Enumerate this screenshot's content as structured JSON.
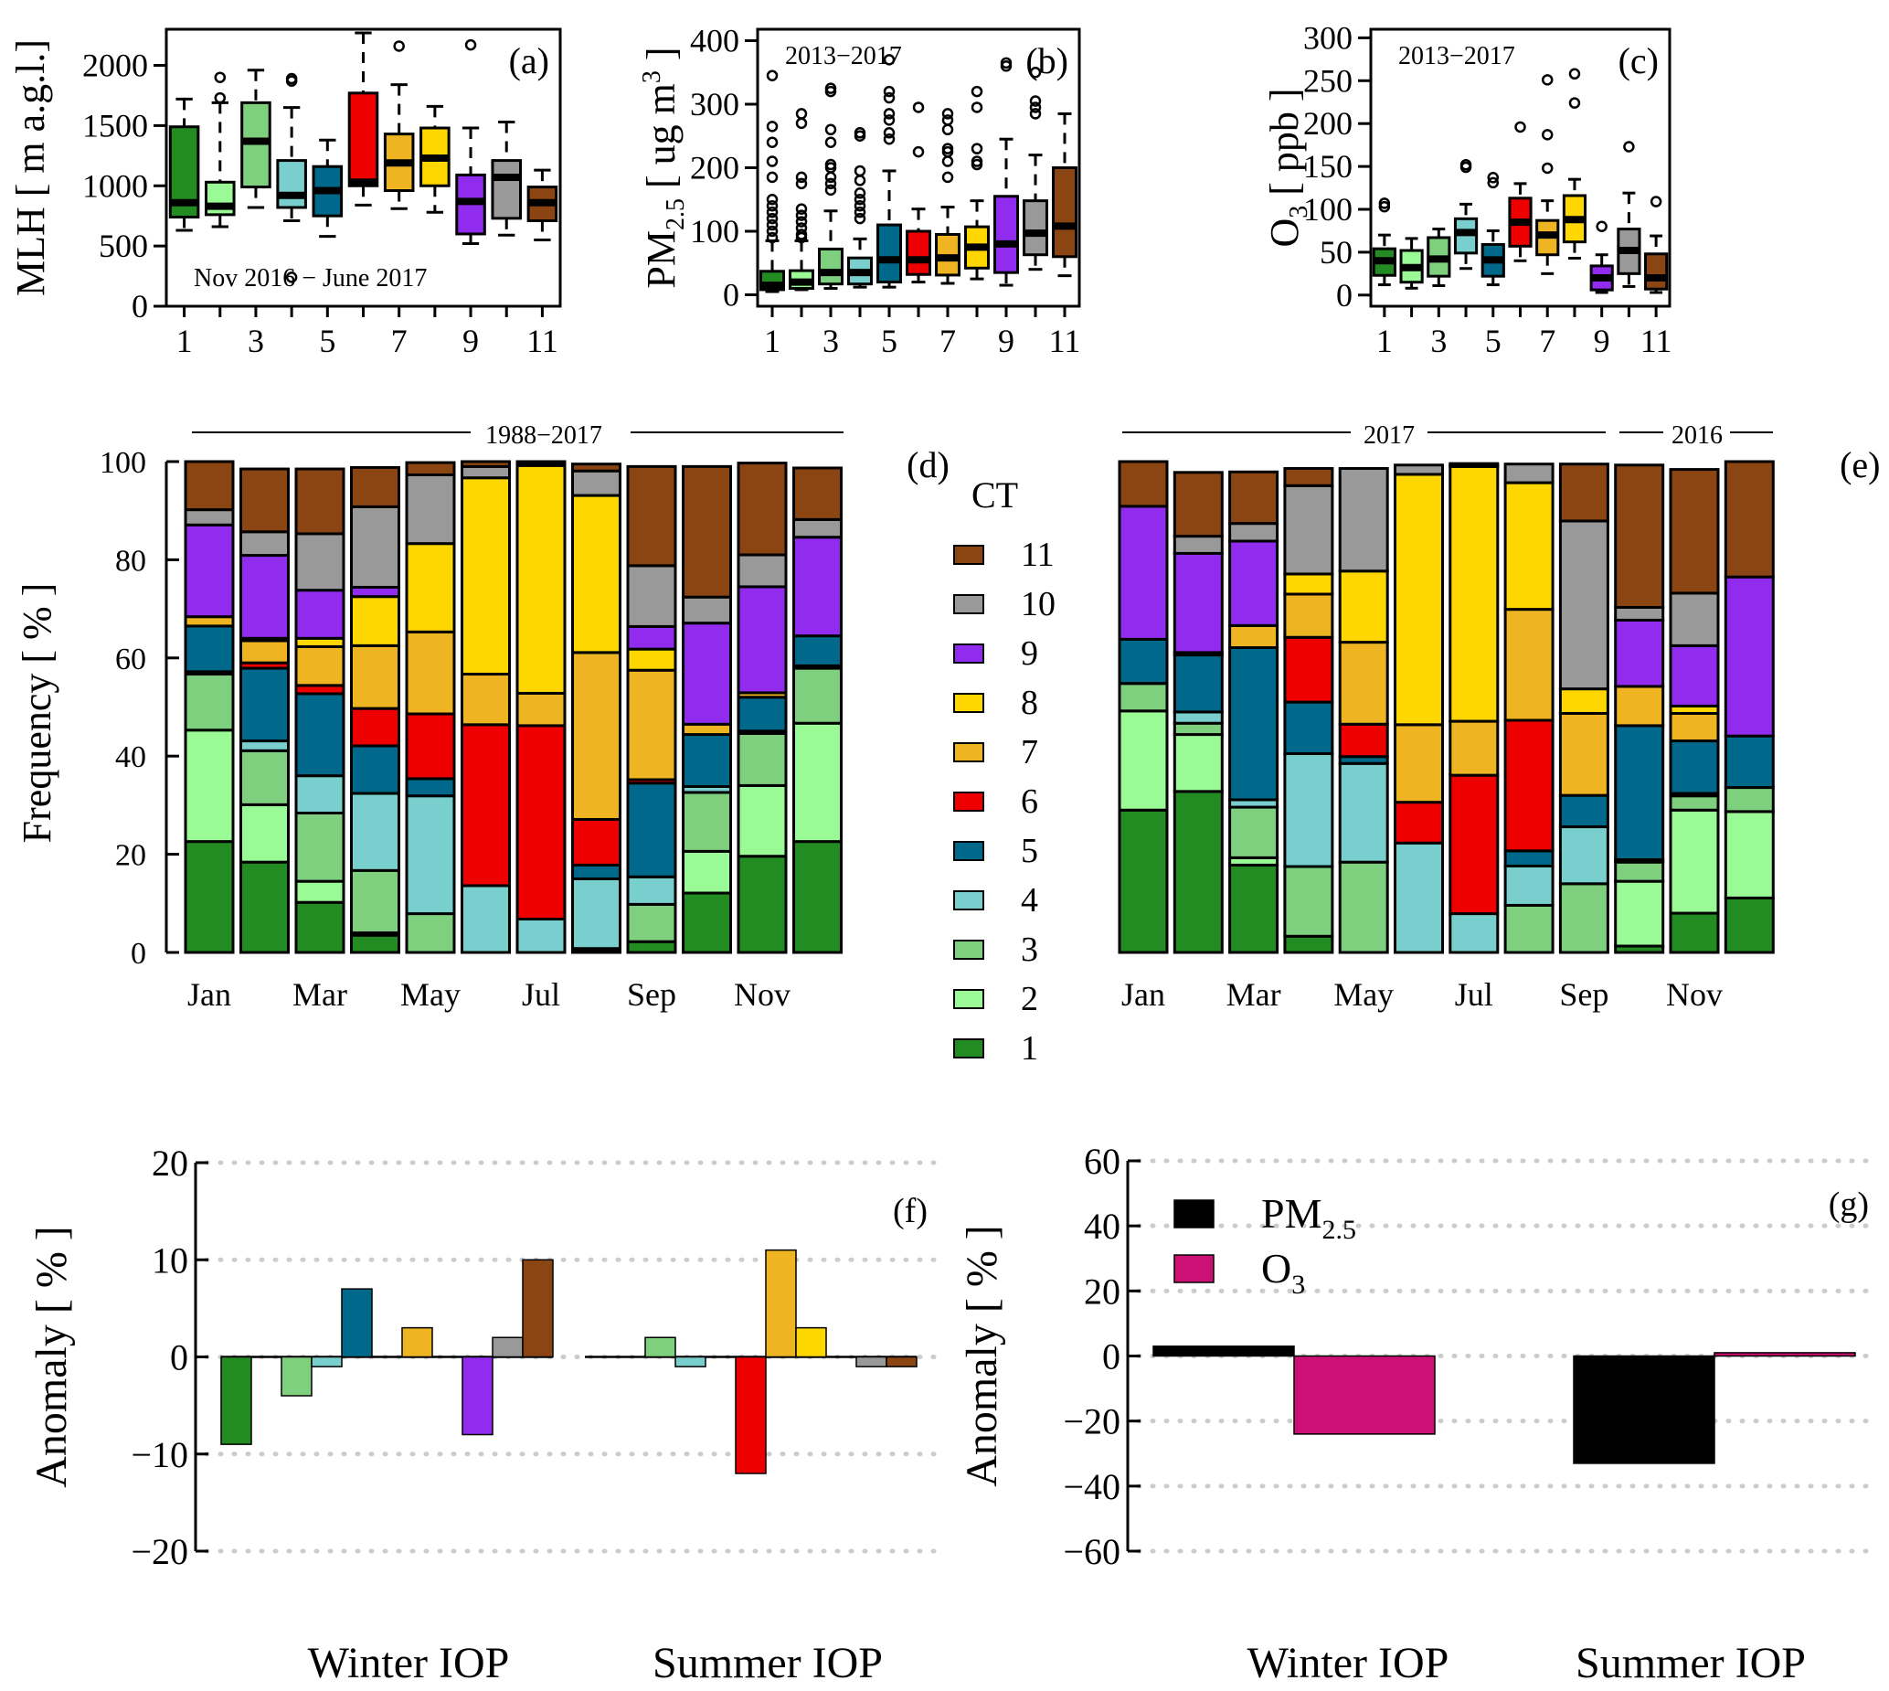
{
  "ct_colors": {
    "1": "#228B22",
    "2": "#9AFA96",
    "3": "#7ECF7E",
    "4": "#79CFCD",
    "5": "#00688B",
    "6": "#EE0000",
    "7": "#EEB422",
    "8": "#FFD700",
    "9": "#912CEE",
    "10": "#999999",
    "11": "#8B4513"
  },
  "chart_data": [
    {
      "id": "a",
      "type": "box",
      "panel_label": "(a)",
      "annotation": "Nov 2016 − June 2017",
      "ylabel": "MLH [ m a.g.l.]",
      "ylim": [
        0,
        2300
      ],
      "yticks": [
        0,
        500,
        1000,
        1500,
        2000
      ],
      "xticks": [
        "1",
        "3",
        "5",
        "7",
        "9",
        "11"
      ],
      "categories": [
        "1",
        "2",
        "3",
        "4",
        "5",
        "6",
        "7",
        "8",
        "9",
        "10",
        "11"
      ],
      "boxes": [
        {
          "ct": 1,
          "lower": 630,
          "q1": 740,
          "median": 860,
          "q3": 1490,
          "upper": 1720,
          "outliers": []
        },
        {
          "ct": 2,
          "lower": 660,
          "q1": 760,
          "median": 830,
          "q3": 1030,
          "upper": 1690,
          "outliers": [
            1730,
            1900
          ]
        },
        {
          "ct": 3,
          "lower": 820,
          "q1": 990,
          "median": 1370,
          "q3": 1690,
          "upper": 1960,
          "outliers": []
        },
        {
          "ct": 4,
          "lower": 710,
          "q1": 820,
          "median": 920,
          "q3": 1210,
          "upper": 1650,
          "outliers": [
            1870,
            1890,
            240
          ]
        },
        {
          "ct": 5,
          "lower": 580,
          "q1": 750,
          "median": 960,
          "q3": 1160,
          "upper": 1380,
          "outliers": []
        },
        {
          "ct": 6,
          "lower": 840,
          "q1": 1000,
          "median": 1030,
          "q3": 1770,
          "upper": 2270,
          "outliers": []
        },
        {
          "ct": 7,
          "lower": 810,
          "q1": 960,
          "median": 1190,
          "q3": 1430,
          "upper": 1840,
          "outliers": [
            2160
          ]
        },
        {
          "ct": 8,
          "lower": 780,
          "q1": 1000,
          "median": 1230,
          "q3": 1480,
          "upper": 1660,
          "outliers": []
        },
        {
          "ct": 9,
          "lower": 520,
          "q1": 600,
          "median": 870,
          "q3": 1090,
          "upper": 1480,
          "outliers": [
            2170
          ]
        },
        {
          "ct": 10,
          "lower": 590,
          "q1": 730,
          "median": 1070,
          "q3": 1210,
          "upper": 1530,
          "outliers": []
        },
        {
          "ct": 11,
          "lower": 550,
          "q1": 710,
          "median": 860,
          "q3": 990,
          "upper": 1130,
          "outliers": []
        }
      ]
    },
    {
      "id": "b",
      "type": "box",
      "panel_label": "(b)",
      "annotation": "2013−2017",
      "ylabel_main": "PM",
      "ylabel_sub": "2.5",
      "ylabel_rest": " [ ug m",
      "ylabel_sup": "3",
      "ylabel_end": " ]",
      "ylim": [
        -18,
        418
      ],
      "yticks": [
        0,
        100,
        200,
        300,
        400
      ],
      "xticks": [
        "1",
        "3",
        "5",
        "7",
        "9",
        "11"
      ],
      "categories": [
        "1",
        "2",
        "3",
        "4",
        "5",
        "6",
        "7",
        "8",
        "9",
        "10",
        "11"
      ],
      "boxes": [
        {
          "ct": 1,
          "lower": 5,
          "q1": 8,
          "median": 15,
          "q3": 37,
          "upper": 85,
          "outliers": [
            90,
            100,
            110,
            120,
            130,
            140,
            150,
            185,
            210,
            240,
            265,
            345
          ]
        },
        {
          "ct": 2,
          "lower": 8,
          "q1": 10,
          "median": 20,
          "q3": 38,
          "upper": 85,
          "outliers": [
            90,
            95,
            105,
            115,
            125,
            135,
            175,
            185,
            270,
            285
          ]
        },
        {
          "ct": 3,
          "lower": 10,
          "q1": 17,
          "median": 35,
          "q3": 72,
          "upper": 132,
          "outliers": [
            165,
            175,
            185,
            200,
            205,
            240,
            260,
            320,
            325
          ]
        },
        {
          "ct": 4,
          "lower": 12,
          "q1": 17,
          "median": 35,
          "q3": 58,
          "upper": 88,
          "outliers": [
            120,
            130,
            140,
            150,
            160,
            180,
            195,
            250,
            255
          ]
        },
        {
          "ct": 5,
          "lower": 12,
          "q1": 20,
          "median": 55,
          "q3": 110,
          "upper": 195,
          "outliers": [
            245,
            255,
            275,
            285,
            310,
            320,
            370
          ]
        },
        {
          "ct": 6,
          "lower": 20,
          "q1": 32,
          "median": 55,
          "q3": 100,
          "upper": 135,
          "outliers": [
            225,
            295
          ]
        },
        {
          "ct": 7,
          "lower": 18,
          "q1": 31,
          "median": 58,
          "q3": 95,
          "upper": 138,
          "outliers": [
            185,
            210,
            225,
            230,
            260,
            275,
            285
          ]
        },
        {
          "ct": 8,
          "lower": 25,
          "q1": 42,
          "median": 75,
          "q3": 107,
          "upper": 148,
          "outliers": [
            205,
            210,
            230,
            295,
            320
          ]
        },
        {
          "ct": 9,
          "lower": 15,
          "q1": 35,
          "median": 80,
          "q3": 155,
          "upper": 245,
          "outliers": [
            360,
            365
          ]
        },
        {
          "ct": 10,
          "lower": 40,
          "q1": 63,
          "median": 97,
          "q3": 148,
          "upper": 220,
          "outliers": [
            285,
            295,
            305,
            350
          ]
        },
        {
          "ct": 11,
          "lower": 30,
          "q1": 60,
          "median": 108,
          "q3": 200,
          "upper": 285,
          "outliers": []
        }
      ]
    },
    {
      "id": "c",
      "type": "box",
      "panel_label": "(c)",
      "annotation": "2013−2017",
      "ylabel_main": "O",
      "ylabel_sub": "3",
      "ylabel_rest": " [ ppb ]",
      "ylim": [
        -13,
        310
      ],
      "yticks": [
        0,
        50,
        100,
        150,
        200,
        250,
        300
      ],
      "xticks": [
        "1",
        "3",
        "5",
        "7",
        "9",
        "11"
      ],
      "categories": [
        "1",
        "2",
        "3",
        "4",
        "5",
        "6",
        "7",
        "8",
        "9",
        "10",
        "11"
      ],
      "boxes": [
        {
          "ct": 1,
          "lower": 12,
          "q1": 23,
          "median": 40,
          "q3": 54,
          "upper": 70,
          "outliers": [
            103,
            107
          ]
        },
        {
          "ct": 2,
          "lower": 8,
          "q1": 15,
          "median": 32,
          "q3": 52,
          "upper": 66,
          "outliers": []
        },
        {
          "ct": 3,
          "lower": 11,
          "q1": 22,
          "median": 42,
          "q3": 67,
          "upper": 77,
          "outliers": []
        },
        {
          "ct": 4,
          "lower": 31,
          "q1": 49,
          "median": 73,
          "q3": 89,
          "upper": 106,
          "outliers": [
            149,
            152
          ]
        },
        {
          "ct": 5,
          "lower": 12,
          "q1": 22,
          "median": 41,
          "q3": 59,
          "upper": 75,
          "outliers": [
            131,
            137
          ]
        },
        {
          "ct": 6,
          "lower": 40,
          "q1": 57,
          "median": 85,
          "q3": 113,
          "upper": 130,
          "outliers": [
            196
          ]
        },
        {
          "ct": 7,
          "lower": 25,
          "q1": 47,
          "median": 70,
          "q3": 87,
          "upper": 110,
          "outliers": [
            148,
            187,
            251
          ]
        },
        {
          "ct": 8,
          "lower": 43,
          "q1": 62,
          "median": 88,
          "q3": 116,
          "upper": 135,
          "outliers": [
            224,
            258
          ]
        },
        {
          "ct": 9,
          "lower": 3,
          "q1": 6,
          "median": 20,
          "q3": 34,
          "upper": 47,
          "outliers": [
            80
          ]
        },
        {
          "ct": 10,
          "lower": 10,
          "q1": 25,
          "median": 52,
          "q3": 77,
          "upper": 119,
          "outliers": [
            173
          ]
        },
        {
          "ct": 11,
          "lower": 3,
          "q1": 7,
          "median": 20,
          "q3": 48,
          "upper": 69,
          "outliers": [
            109
          ]
        }
      ]
    },
    {
      "id": "d",
      "type": "stacked_bar",
      "panel_label": "(d)",
      "period_label": "1988−2017",
      "ylabel": "Frequency [ % ]",
      "ylim": [
        0,
        100
      ],
      "yticks": [
        0,
        20,
        40,
        60,
        80,
        100
      ],
      "xtick_labels": [
        "Jan",
        "",
        "Mar",
        "",
        "May",
        "",
        "Jul",
        "",
        "Sep",
        "",
        "Nov",
        ""
      ],
      "months": [
        "Jan",
        "Feb",
        "Mar",
        "Apr",
        "May",
        "Jun",
        "Jul",
        "Aug",
        "Sep",
        "Oct",
        "Nov",
        "Dec"
      ],
      "series_order": [
        1,
        2,
        3,
        4,
        5,
        6,
        7,
        8,
        9,
        10,
        11
      ],
      "values": [
        [
          22.6,
          22.7,
          11.4,
          0.5,
          9.3,
          0.0,
          1.9,
          0.0,
          18.7,
          3.1,
          9.8
        ],
        [
          18.4,
          11.7,
          11.0,
          2.0,
          14.8,
          1.1,
          4.5,
          0.5,
          16.9,
          4.8,
          12.8
        ],
        [
          10.2,
          4.3,
          13.9,
          7.6,
          16.7,
          1.7,
          7.9,
          1.7,
          9.8,
          11.5,
          13.2
        ],
        [
          3.5,
          0.5,
          12.7,
          15.7,
          9.7,
          7.6,
          12.8,
          10.0,
          1.9,
          16.4,
          8.0
        ],
        [
          0.0,
          0.0,
          7.9,
          24.0,
          3.5,
          13.2,
          16.7,
          18.0,
          0.0,
          14.0,
          2.5
        ],
        [
          0.0,
          0.0,
          0.0,
          13.6,
          0.0,
          32.8,
          10.3,
          40.0,
          0.0,
          2.3,
          1.0
        ],
        [
          0.0,
          0.0,
          0.0,
          6.8,
          0.0,
          39.4,
          6.6,
          46.4,
          0.0,
          0.5,
          0.3
        ],
        [
          0.0,
          0.3,
          0.5,
          14.2,
          2.8,
          9.3,
          34.0,
          32.0,
          0.0,
          5.0,
          1.4
        ],
        [
          2.2,
          0.0,
          7.6,
          5.6,
          19.1,
          0.7,
          22.3,
          4.3,
          4.6,
          12.4,
          20.2
        ],
        [
          12.1,
          8.5,
          12.0,
          1.2,
          10.6,
          0.0,
          2.1,
          0.0,
          20.6,
          5.3,
          26.6
        ],
        [
          19.6,
          14.4,
          10.6,
          0.5,
          6.9,
          0.0,
          0.9,
          0.0,
          21.6,
          6.5,
          18.7
        ],
        [
          22.6,
          24.1,
          11.2,
          0.5,
          6.1,
          0.0,
          0.0,
          0.0,
          20.1,
          3.6,
          10.5
        ]
      ]
    },
    {
      "id": "e",
      "type": "stacked_bar",
      "panel_label": "(e)",
      "period_labels": [
        "2017",
        "2016"
      ],
      "ylim": [
        0,
        100
      ],
      "xtick_labels": [
        "Jan",
        "",
        "Mar",
        "",
        "May",
        "",
        "Jul",
        "",
        "Sep",
        "",
        "Nov",
        ""
      ],
      "months": [
        "Jan",
        "Feb",
        "Mar",
        "Apr",
        "May",
        "Jun",
        "Jul",
        "Aug",
        "Sep",
        "Oct",
        "Nov",
        "Dec"
      ],
      "series_order": [
        1,
        2,
        3,
        4,
        5,
        6,
        7,
        8,
        9,
        10,
        11
      ],
      "values": [
        [
          29.0,
          20.2,
          5.6,
          0.0,
          9.0,
          0.0,
          0.0,
          0.0,
          27.1,
          0.0,
          9.1
        ],
        [
          32.8,
          11.6,
          2.3,
          2.3,
          11.6,
          0.0,
          0.5,
          0.0,
          20.2,
          3.5,
          13.0
        ],
        [
          17.8,
          1.5,
          10.3,
          1.5,
          31.0,
          0.0,
          4.5,
          0.0,
          17.2,
          3.6,
          10.5
        ],
        [
          3.3,
          0.0,
          14.2,
          23.0,
          10.5,
          13.2,
          8.8,
          4.1,
          0.0,
          18.0,
          3.5
        ],
        [
          0.0,
          0.0,
          18.4,
          20.1,
          1.4,
          6.6,
          16.7,
          14.5,
          0.0,
          20.9,
          0.0
        ],
        [
          0.0,
          0.0,
          0.0,
          22.3,
          0.0,
          8.3,
          15.8,
          51.0,
          0.0,
          1.9,
          0.0
        ],
        [
          0.0,
          0.0,
          0.0,
          7.9,
          0.0,
          28.2,
          11.0,
          51.9,
          0.0,
          0.3,
          0.3
        ],
        [
          0.0,
          0.0,
          9.6,
          8.0,
          3.1,
          26.6,
          22.6,
          25.8,
          0.0,
          3.8,
          0.0
        ],
        [
          0.0,
          0.0,
          14.0,
          11.6,
          6.4,
          0.0,
          16.7,
          5.0,
          0.0,
          34.2,
          11.6
        ],
        [
          1.3,
          13.2,
          3.9,
          0.5,
          27.3,
          0.0,
          8.0,
          0.0,
          13.5,
          2.6,
          29.0
        ],
        [
          8.0,
          21.0,
          2.9,
          0.5,
          10.7,
          0.0,
          5.6,
          1.5,
          12.3,
          10.7,
          25.2
        ],
        [
          11.1,
          17.6,
          4.9,
          0.0,
          10.5,
          0.0,
          0.0,
          0.0,
          32.4,
          0.0,
          23.5
        ]
      ]
    },
    {
      "id": "f",
      "type": "bar",
      "panel_label": "(f)",
      "ylabel": "Anomaly [ % ]",
      "ylim": [
        -20,
        20
      ],
      "yticks": [
        -20,
        -10,
        0,
        10,
        20
      ],
      "categories": [
        "Winter IOP",
        "Summer IOP"
      ],
      "grid": true,
      "series_by_ct": [
        1,
        2,
        3,
        4,
        5,
        6,
        7,
        8,
        9,
        10,
        11
      ],
      "values": [
        [
          -9,
          0,
          -4,
          -1,
          7,
          0,
          3,
          0,
          -8,
          2,
          10
        ],
        [
          0,
          0,
          2,
          -1,
          0,
          -12,
          11,
          3,
          0,
          -1,
          -1
        ]
      ]
    },
    {
      "id": "g",
      "type": "bar",
      "panel_label": "(g)",
      "ylabel": "Anomaly [ % ]",
      "ylim": [
        -60,
        60
      ],
      "yticks": [
        -60,
        -40,
        -20,
        0,
        20,
        40,
        60
      ],
      "categories": [
        "Winter IOP",
        "Summer IOP"
      ],
      "grid": true,
      "legend_position": "top-left",
      "series": [
        {
          "name_main": "PM",
          "name_sub": "2.5",
          "color": "#000000",
          "values": [
            3,
            -33
          ]
        },
        {
          "name_main": "O",
          "name_sub": "3",
          "color": "#CD1076",
          "values": [
            -24,
            1
          ]
        }
      ]
    }
  ],
  "legend": {
    "title": "CT",
    "entries": [
      "11",
      "10",
      "9",
      "8",
      "7",
      "6",
      "5",
      "4",
      "3",
      "2",
      "1"
    ]
  }
}
